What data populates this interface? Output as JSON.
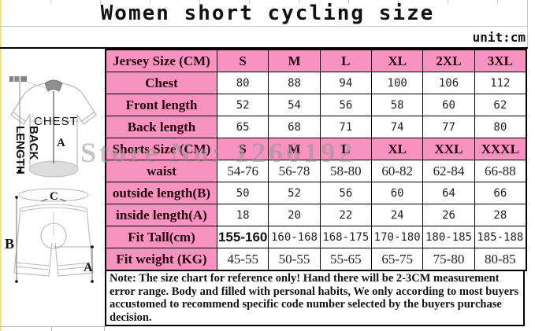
{
  "page": {
    "title": "Women short cycling size",
    "unit_label": "unit:cm",
    "watermark": "Store No: 1266192"
  },
  "table": {
    "rows": [
      {
        "label": "Jersey Size (CM)",
        "values": [
          "S",
          "M",
          "L",
          "XL",
          "2XL",
          "3XL"
        ]
      },
      {
        "label": "Chest",
        "values": [
          "80",
          "88",
          "94",
          "100",
          "106",
          "112"
        ]
      },
      {
        "label": "Front length",
        "values": [
          "52",
          "54",
          "56",
          "58",
          "60",
          "62"
        ]
      },
      {
        "label": "Back length",
        "values": [
          "65",
          "68",
          "71",
          "74",
          "77",
          "80"
        ]
      },
      {
        "label": "Shorts Size (CM)",
        "values": [
          "S",
          "M",
          "L",
          "XL",
          "XXL",
          "XXXL"
        ]
      },
      {
        "label": "waist",
        "values": [
          "54-76",
          "56-78",
          "58-80",
          "60-82",
          "62-84",
          "66-88"
        ]
      },
      {
        "label": "outside length(B)",
        "values": [
          "50",
          "52",
          "56",
          "60",
          "64",
          "66"
        ]
      },
      {
        "label": "inside length(A)",
        "values": [
          "18",
          "20",
          "22",
          "24",
          "26",
          "28"
        ]
      },
      {
        "label": "Fit Tall(cm)",
        "values": [
          "155-160",
          "160-168",
          "168-175",
          "170-180",
          "180-185",
          "185-188"
        ]
      },
      {
        "label": "Fit weight (KG)",
        "values": [
          "45-55",
          "50-55",
          "55-65",
          "65-75",
          "75-80",
          "80-85"
        ]
      }
    ]
  },
  "note": {
    "text": "Note: The size chart for reference only! Hand there will be 2-3CM measurement error range. Body and filled with personal habits, We only according to most buyers accustomed to recommend specific code number selected by the buyers purchase decision."
  },
  "diagram": {
    "jersey": {
      "chest_label": "CHEST",
      "back_length_lines": [
        "BACK",
        "LENGTH"
      ],
      "front_label": "A"
    },
    "shorts": {
      "waist_label": "C",
      "outside_label": "B",
      "inside_label": "A"
    }
  },
  "colors": {
    "pink": "#f792c1",
    "border": "#000000",
    "watermark_gray": "#969696",
    "sketch_gray": "#b8b8b8",
    "left_strip_yellow": "#e9e18a"
  }
}
